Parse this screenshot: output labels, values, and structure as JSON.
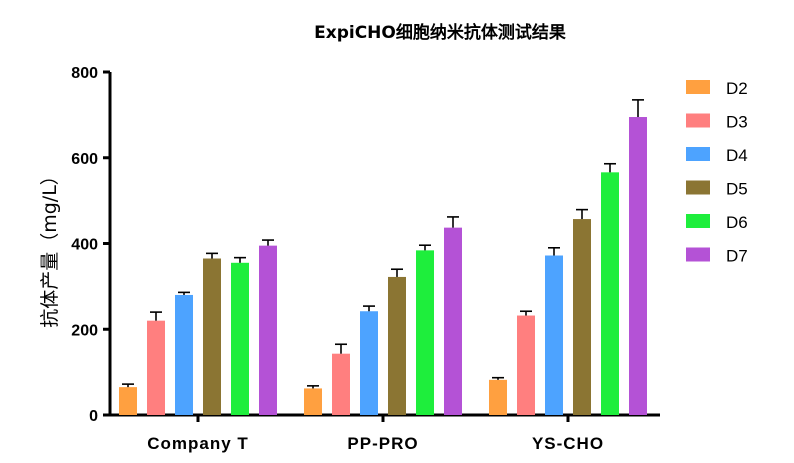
{
  "chart_data": {
    "type": "bar",
    "title": "ExpiCHO细胞纳米抗体测试结果",
    "xlabel": "",
    "ylabel": "抗体产量（mg/L）",
    "ylim": [
      0,
      800
    ],
    "yticks": [
      "0",
      "200",
      "400",
      "600",
      "800"
    ],
    "grid": false,
    "legend_position": "right",
    "categories": [
      "Company T",
      "PP-PRO",
      "YS-CHO"
    ],
    "series": [
      {
        "name": "D2",
        "color": "#FFA040",
        "values": [
          65,
          62,
          82
        ],
        "errors": [
          7,
          6,
          5
        ]
      },
      {
        "name": "D3",
        "color": "#FF7F7F",
        "values": [
          220,
          143,
          232
        ],
        "errors": [
          20,
          22,
          10
        ]
      },
      {
        "name": "D4",
        "color": "#4DA3FF",
        "values": [
          280,
          242,
          372
        ],
        "errors": [
          6,
          12,
          18
        ]
      },
      {
        "name": "D5",
        "color": "#8B7533",
        "values": [
          365,
          322,
          457
        ],
        "errors": [
          12,
          18,
          22
        ]
      },
      {
        "name": "D6",
        "color": "#1EEE3C",
        "values": [
          355,
          384,
          566
        ],
        "errors": [
          12,
          12,
          20
        ]
      },
      {
        "name": "D7",
        "color": "#B452D6",
        "values": [
          395,
          437,
          695
        ],
        "errors": [
          13,
          25,
          40
        ]
      }
    ]
  }
}
